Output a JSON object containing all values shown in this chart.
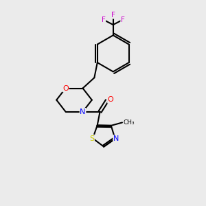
{
  "background_color": "#ebebeb",
  "bond_color": "#000000",
  "atom_colors": {
    "O": "#ff0000",
    "N": "#0000ff",
    "S": "#cccc00",
    "F": "#cc00cc",
    "C": "#000000"
  },
  "figsize": [
    3.0,
    3.0
  ],
  "dpi": 100
}
